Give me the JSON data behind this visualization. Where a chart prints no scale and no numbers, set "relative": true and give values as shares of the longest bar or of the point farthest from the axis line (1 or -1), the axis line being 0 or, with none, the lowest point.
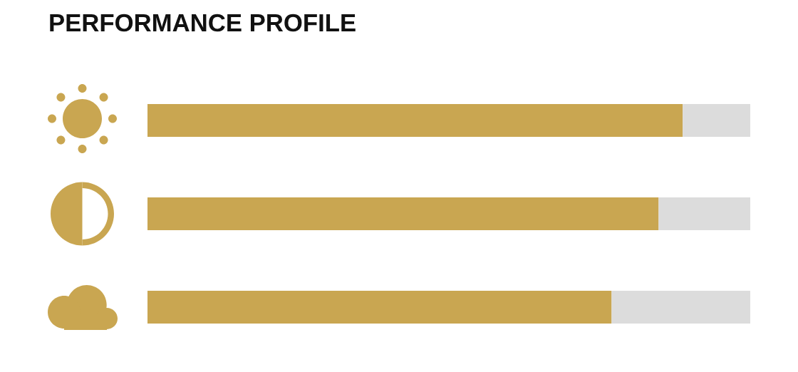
{
  "chart_data": {
    "type": "bar",
    "orientation": "horizontal",
    "stacked": true,
    "relative": true,
    "title": "PERFORMANCE PROFILE",
    "categories": [
      null,
      null,
      null
    ],
    "series": [
      {
        "color": "#c9a651",
        "values": [
          0.888,
          0.848,
          0.77
        ]
      },
      {
        "color": "#dcdcdc",
        "values": [
          0.112,
          0.152,
          0.23
        ]
      }
    ]
  }
}
